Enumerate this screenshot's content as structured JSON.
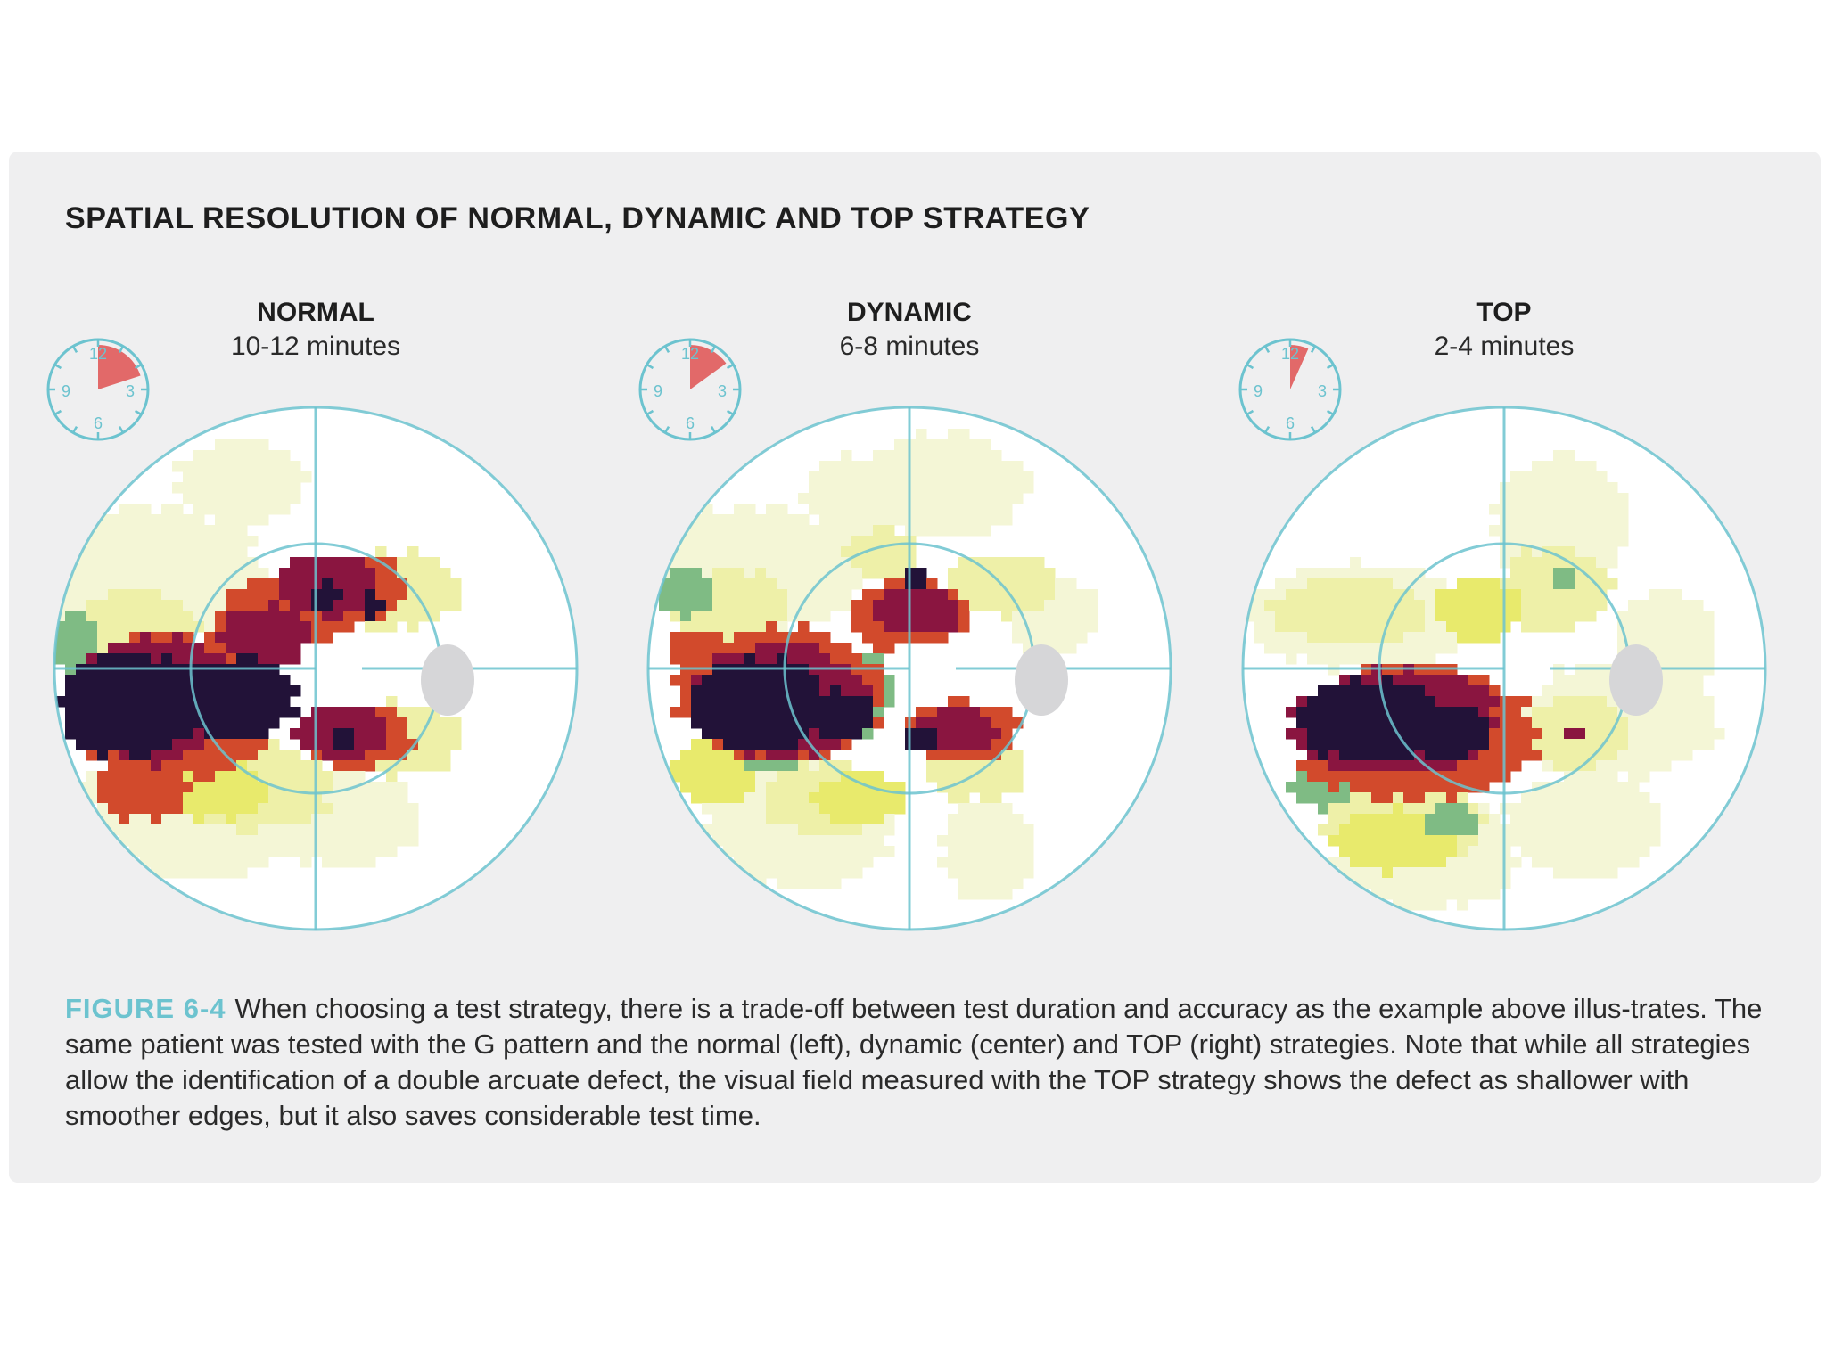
{
  "heading": "SPATIAL RESOLUTION OF NORMAL, DYNAMIC AND TOP STRATEGY",
  "colors": {
    "panel": "#efeff0",
    "accent": "#6cc3cf",
    "clock_wedge": "#e05a5a",
    "blind_spot": "#d6d6d8",
    "scale": [
      "#ffffff",
      "#f4f6d6",
      "#eef0a8",
      "#e8ea6c",
      "#7fbb84",
      "#d24a2c",
      "#8a1540",
      "#221238"
    ]
  },
  "strategies": [
    {
      "id": "normal",
      "title": "NORMAL",
      "duration": "10-12 minutes",
      "clock": {
        "numerals": [
          "12",
          "3",
          "6",
          "9"
        ],
        "wedge_minutes": 12
      },
      "field": {
        "blobs": [
          [
            -0.66,
            -0.36,
            0.46,
            0.26,
            1
          ],
          [
            -0.5,
            0.55,
            0.46,
            0.26,
            1
          ],
          [
            0.1,
            0.58,
            0.3,
            0.18,
            1
          ],
          [
            -0.28,
            -0.72,
            0.25,
            0.16,
            1
          ],
          [
            -0.7,
            -0.16,
            0.24,
            0.14,
            2
          ],
          [
            -0.25,
            0.45,
            0.32,
            0.17,
            2
          ],
          [
            0.27,
            -0.3,
            0.28,
            0.15,
            2
          ],
          [
            0.3,
            0.27,
            0.26,
            0.14,
            2
          ],
          [
            -0.38,
            0.46,
            0.2,
            0.12,
            3
          ],
          [
            -0.92,
            -0.1,
            0.1,
            0.11,
            4
          ],
          [
            -0.86,
            -0.02,
            0.08,
            0.05,
            4
          ],
          [
            -0.55,
            0.14,
            0.42,
            0.28,
            5
          ],
          [
            -0.15,
            -0.18,
            0.24,
            0.16,
            5
          ],
          [
            0.12,
            -0.3,
            0.24,
            0.14,
            5
          ],
          [
            0.16,
            0.26,
            0.22,
            0.12,
            5
          ],
          [
            -0.66,
            0.46,
            0.18,
            0.12,
            5
          ],
          [
            -0.62,
            0.12,
            0.34,
            0.24,
            6
          ],
          [
            -0.2,
            -0.12,
            0.18,
            0.12,
            6
          ],
          [
            0.05,
            -0.32,
            0.2,
            0.12,
            6
          ],
          [
            0.1,
            0.24,
            0.18,
            0.1,
            6
          ],
          [
            -0.7,
            0.14,
            0.28,
            0.2,
            7
          ],
          [
            -0.3,
            0.12,
            0.22,
            0.16,
            7
          ],
          [
            0.04,
            -0.28,
            0.06,
            0.05,
            7
          ],
          [
            0.22,
            -0.24,
            0.05,
            0.05,
            7
          ],
          [
            0.12,
            0.27,
            0.05,
            0.04,
            7
          ]
        ]
      }
    },
    {
      "id": "dynamic",
      "title": "DYNAMIC",
      "duration": "6-8 minutes",
      "clock": {
        "numerals": [
          "12",
          "3",
          "6",
          "9"
        ],
        "wedge_minutes": 9
      },
      "field": {
        "blobs": [
          [
            -0.6,
            -0.38,
            0.44,
            0.24,
            1
          ],
          [
            -0.42,
            0.58,
            0.36,
            0.26,
            1
          ],
          [
            0.12,
            -0.7,
            0.34,
            0.2,
            1
          ],
          [
            0.3,
            0.7,
            0.18,
            0.2,
            1
          ],
          [
            0.55,
            -0.2,
            0.18,
            0.14,
            1
          ],
          [
            -0.2,
            -0.66,
            0.2,
            0.16,
            1
          ],
          [
            -0.7,
            -0.24,
            0.24,
            0.14,
            2
          ],
          [
            -0.3,
            0.5,
            0.26,
            0.14,
            2
          ],
          [
            0.35,
            -0.32,
            0.2,
            0.12,
            2
          ],
          [
            0.25,
            0.38,
            0.2,
            0.12,
            2
          ],
          [
            -0.1,
            -0.44,
            0.14,
            0.1,
            2
          ],
          [
            -0.75,
            0.4,
            0.16,
            0.12,
            3
          ],
          [
            -0.2,
            0.5,
            0.18,
            0.1,
            3
          ],
          [
            -0.86,
            -0.3,
            0.1,
            0.1,
            4
          ],
          [
            -0.55,
            0.3,
            0.16,
            0.1,
            4
          ],
          [
            -0.15,
            0.1,
            0.08,
            0.16,
            4
          ],
          [
            -0.5,
            0.1,
            0.4,
            0.26,
            5
          ],
          [
            0.0,
            -0.2,
            0.22,
            0.14,
            5
          ],
          [
            0.2,
            0.24,
            0.22,
            0.12,
            5
          ],
          [
            -0.82,
            -0.08,
            0.1,
            0.06,
            5
          ],
          [
            -0.5,
            0.12,
            0.34,
            0.22,
            6
          ],
          [
            0.03,
            -0.22,
            0.16,
            0.1,
            6
          ],
          [
            0.18,
            0.24,
            0.16,
            0.08,
            6
          ],
          [
            -0.58,
            0.14,
            0.26,
            0.18,
            7
          ],
          [
            -0.25,
            0.18,
            0.12,
            0.1,
            7
          ],
          [
            0.02,
            -0.35,
            0.06,
            0.05,
            7
          ],
          [
            0.04,
            0.27,
            0.06,
            0.05,
            7
          ]
        ]
      }
    },
    {
      "id": "top",
      "title": "TOP",
      "duration": "2-4 minutes",
      "clock": {
        "numerals": [
          "12",
          "3",
          "6",
          "9"
        ],
        "wedge_minutes": 4
      },
      "field": {
        "blobs": [
          [
            -0.55,
            -0.2,
            0.44,
            0.2,
            1
          ],
          [
            -0.3,
            0.7,
            0.36,
            0.22,
            1
          ],
          [
            0.22,
            -0.55,
            0.26,
            0.28,
            1
          ],
          [
            0.42,
            0.2,
            0.4,
            0.22,
            1
          ],
          [
            0.62,
            -0.1,
            0.2,
            0.2,
            1
          ],
          [
            0.3,
            0.6,
            0.3,
            0.2,
            1
          ],
          [
            -0.6,
            -0.22,
            0.3,
            0.12,
            2
          ],
          [
            -0.38,
            0.58,
            0.32,
            0.16,
            2
          ],
          [
            0.2,
            -0.3,
            0.22,
            0.16,
            2
          ],
          [
            0.28,
            0.25,
            0.2,
            0.14,
            2
          ],
          [
            -0.42,
            0.66,
            0.24,
            0.12,
            3
          ],
          [
            -0.1,
            -0.22,
            0.16,
            0.12,
            3
          ],
          [
            -0.7,
            0.46,
            0.12,
            0.08,
            4
          ],
          [
            -0.2,
            0.58,
            0.1,
            0.06,
            4
          ],
          [
            0.22,
            -0.34,
            0.04,
            0.04,
            4
          ],
          [
            -0.35,
            0.24,
            0.48,
            0.26,
            5
          ],
          [
            -0.42,
            0.2,
            0.4,
            0.2,
            6
          ],
          [
            0.26,
            0.25,
            0.03,
            0.03,
            6
          ],
          [
            -0.5,
            0.2,
            0.3,
            0.16,
            7
          ],
          [
            -0.22,
            0.24,
            0.16,
            0.1,
            7
          ]
        ]
      }
    }
  ],
  "caption": {
    "label": "FIGURE 6-4",
    "text": "When choosing a test strategy, there is a trade-off between test duration and accuracy as the example above illus-trates. The same patient was tested with the G pattern and the normal (left), dynamic (center) and TOP (right) strategies.  Note that while all strategies allow the identification of a double arcuate defect, the visual field measured with the TOP strategy shows the defect as shallower with smoother edges, but it also saves considerable test time."
  }
}
